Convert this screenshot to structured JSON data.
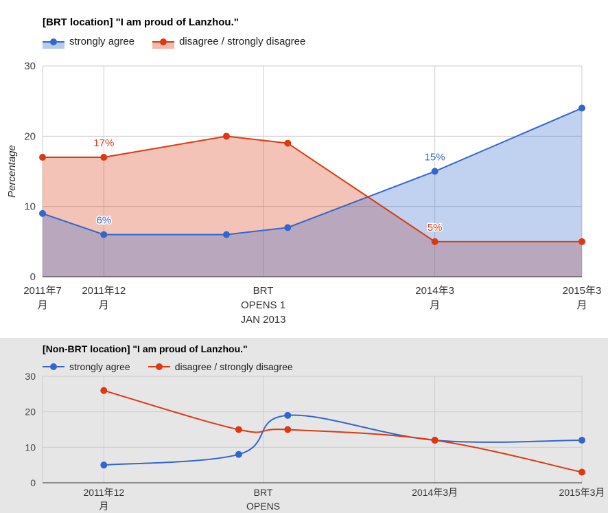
{
  "colors": {
    "blue": "#3366cc",
    "red": "#dc3912"
  },
  "chart_data": [
    {
      "type": "area",
      "title": "[BRT location] \"I am proud of Lanzhou.\"",
      "ylabel": "Percentage",
      "ylim": [
        0,
        30
      ],
      "yticks": [
        0,
        10,
        20,
        30
      ],
      "grid": true,
      "legend_position": "top-left",
      "x_ticks": [
        {
          "pos": 0,
          "lines": [
            "2011年7",
            "月"
          ]
        },
        {
          "pos": 5,
          "lines": [
            "2011年12",
            "月"
          ]
        },
        {
          "pos": 18,
          "lines": [
            "BRT",
            "OPENS 1",
            "JAN 2013"
          ]
        },
        {
          "pos": 32,
          "lines": [
            "2014年3",
            "月"
          ]
        },
        {
          "pos": 44,
          "lines": [
            "2015年3",
            "月"
          ]
        }
      ],
      "xlim": [
        0,
        44
      ],
      "series": [
        {
          "name": "strongly agree",
          "color": "#3366cc",
          "points": [
            [
              0,
              9
            ],
            [
              5,
              6
            ],
            [
              15,
              6
            ],
            [
              20,
              7
            ],
            [
              32,
              15
            ],
            [
              44,
              24
            ]
          ],
          "labels": [
            {
              "index": 1,
              "text": "6%"
            },
            {
              "index": 4,
              "text": "15%"
            }
          ]
        },
        {
          "name": "disagree / strongly disagree",
          "color": "#dc3912",
          "points": [
            [
              0,
              17
            ],
            [
              5,
              17
            ],
            [
              15,
              20
            ],
            [
              20,
              19
            ],
            [
              32,
              5
            ],
            [
              44,
              5
            ]
          ],
          "labels": [
            {
              "index": 1,
              "text": "17%"
            },
            {
              "index": 4,
              "text": "5%"
            }
          ]
        }
      ]
    },
    {
      "type": "line",
      "title": "[Non-BRT location] \"I am proud of Lanzhou.\"",
      "ylim": [
        0,
        30
      ],
      "yticks": [
        0,
        10,
        20,
        30
      ],
      "grid": true,
      "legend_position": "top-left",
      "x_ticks": [
        {
          "pos": 5,
          "lines": [
            "2011年12",
            "月"
          ]
        },
        {
          "pos": 18,
          "lines": [
            "BRT",
            "OPENS"
          ]
        },
        {
          "pos": 32,
          "lines": [
            "2014年3月"
          ]
        },
        {
          "pos": 44,
          "lines": [
            "2015年3月"
          ]
        }
      ],
      "xlim": [
        0,
        44
      ],
      "series": [
        {
          "name": "strongly agree",
          "color": "#3366cc",
          "points": [
            [
              5,
              5
            ],
            [
              16,
              8
            ],
            [
              20,
              19
            ],
            [
              32,
              12
            ],
            [
              44,
              12
            ]
          ]
        },
        {
          "name": "disagree / strongly disagree",
          "color": "#dc3912",
          "points": [
            [
              5,
              26
            ],
            [
              16,
              15
            ],
            [
              20,
              15
            ],
            [
              32,
              12
            ],
            [
              44,
              3
            ]
          ]
        }
      ]
    }
  ]
}
